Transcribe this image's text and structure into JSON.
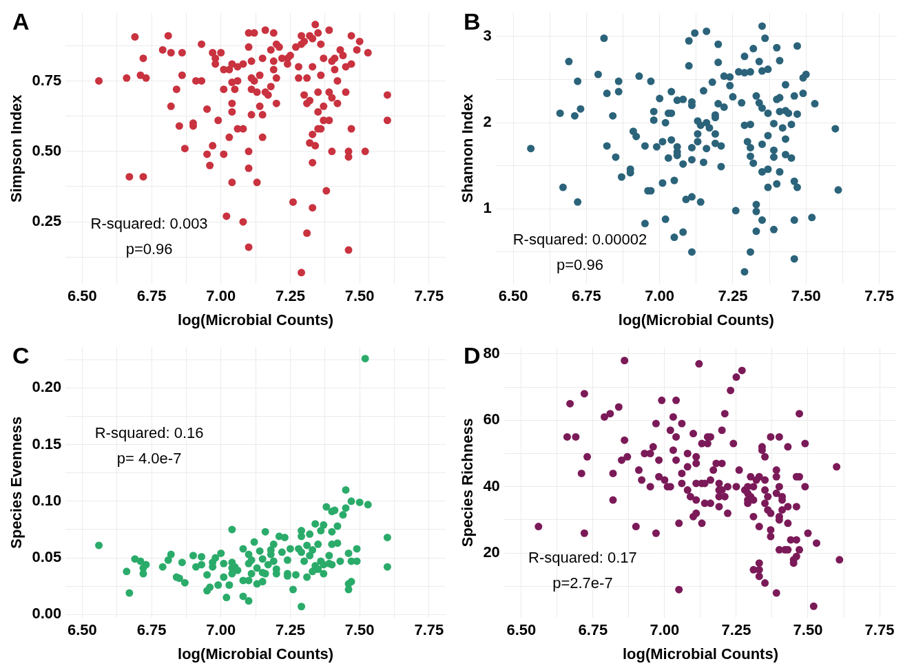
{
  "chart_data": [
    {
      "type": "scatter",
      "title": "A",
      "xlabel": "log(Microbial Counts)",
      "ylabel": "Simpson Index",
      "annotations": [
        "R-squared: 0.003",
        "p=0.96"
      ],
      "marker": "circle",
      "grid": true,
      "xlim": [
        6.44,
        7.81
      ],
      "xticks": [
        {
          "value": 6.5,
          "label": "6.50"
        },
        {
          "value": 6.625,
          "label": null
        },
        {
          "value": 6.75,
          "label": "6.75"
        },
        {
          "value": 6.875,
          "label": null
        },
        {
          "value": 7,
          "label": "7.00"
        },
        {
          "value": 7.125,
          "label": null
        },
        {
          "value": 7.25,
          "label": "7.25"
        },
        {
          "value": 7.375,
          "label": null
        },
        {
          "value": 7.5,
          "label": "7.50"
        },
        {
          "value": 7.625,
          "label": null
        },
        {
          "value": 7.75,
          "label": "7.75"
        }
      ],
      "ylim": [
        0.03,
        0.99
      ],
      "yticks": [
        {
          "value": 0.125,
          "label": null
        },
        {
          "value": 0.25,
          "label": "0.25"
        },
        {
          "value": 0.375,
          "label": null
        },
        {
          "value": 0.5,
          "label": "0.50"
        },
        {
          "value": 0.625,
          "label": null
        },
        {
          "value": 0.75,
          "label": "0.75"
        },
        {
          "value": 0.875,
          "label": null
        }
      ],
      "series": [
        {
          "color": "#c9323f",
          "x": [
            6.56,
            6.69,
            6.66,
            6.67,
            6.72,
            6.71,
            6.72,
            6.73,
            6.79,
            6.81,
            6.82,
            6.82,
            6.84,
            6.85,
            6.86,
            6.86,
            6.87,
            6.9,
            6.9,
            6.91,
            6.93,
            6.93,
            6.95,
            6.95,
            6.96,
            6.97,
            6.97,
            6.98,
            6.98,
            6.99,
            7.0,
            7.01,
            7.01,
            7.01,
            7.02,
            7.03,
            7.03,
            7.04,
            7.04,
            7.04,
            7.04,
            7.04,
            7.05,
            7.06,
            7.06,
            7.06,
            7.08,
            7.08,
            7.08,
            7.1,
            7.1,
            7.1,
            7.1,
            7.1,
            7.11,
            7.11,
            7.11,
            7.11,
            7.12,
            7.12,
            7.13,
            7.13,
            7.14,
            7.14,
            7.15,
            7.15,
            7.15,
            7.16,
            7.16,
            7.17,
            7.18,
            7.18,
            7.19,
            7.19,
            7.19,
            7.2,
            7.2,
            7.2,
            7.21,
            7.22,
            7.24,
            7.24,
            7.25,
            7.26,
            7.27,
            7.28,
            7.28,
            7.29,
            7.29,
            7.29,
            7.3,
            7.3,
            7.31,
            7.31,
            7.31,
            7.32,
            7.32,
            7.32,
            7.33,
            7.33,
            7.33,
            7.33,
            7.33,
            7.34,
            7.34,
            7.35,
            7.35,
            7.35,
            7.35,
            7.36,
            7.36,
            7.36,
            7.37,
            7.37,
            7.37,
            7.38,
            7.39,
            7.39,
            7.39,
            7.4,
            7.4,
            7.4,
            7.41,
            7.41,
            7.42,
            7.42,
            7.43,
            7.44,
            7.45,
            7.45,
            7.46,
            7.46,
            7.46,
            7.47,
            7.47,
            7.47,
            7.49,
            7.5,
            7.52,
            7.53,
            7.6,
            7.6
          ],
          "values": [
            0.75,
            0.906,
            0.76,
            0.41,
            0.41,
            0.77,
            0.83,
            0.76,
            0.86,
            0.91,
            0.85,
            0.66,
            0.72,
            0.59,
            0.77,
            0.85,
            0.51,
            0.6,
            0.59,
            0.75,
            0.75,
            0.88,
            0.65,
            0.49,
            0.45,
            0.85,
            0.52,
            0.81,
            0.83,
            0.61,
            0.85,
            0.49,
            0.72,
            0.79,
            0.27,
            0.79,
            0.55,
            0.67,
            0.745,
            0.81,
            0.64,
            0.39,
            0.72,
            0.75,
            0.58,
            0.8,
            0.25,
            0.58,
            0.81,
            0.44,
            0.87,
            0.92,
            0.5,
            0.16,
            0.82,
            0.72,
            0.63,
            0.76,
            0.92,
            0.75,
            0.71,
            0.39,
            0.77,
            0.66,
            0.83,
            0.55,
            0.63,
            0.93,
            0.71,
            0.7,
            0.86,
            0.73,
            0.79,
            0.82,
            0.92,
            0.88,
            0.76,
            0.67,
            0.87,
            0.83,
            0.83,
            0.81,
            0.84,
            0.32,
            0.87,
            0.8,
            0.76,
            0.07,
            0.91,
            0.88,
            0.7,
            0.89,
            0.76,
            0.21,
            0.67,
            0.91,
            0.68,
            0.53,
            0.3,
            0.56,
            0.46,
            0.9,
            0.8,
            0.95,
            0.52,
            0.92,
            0.71,
            0.64,
            0.58,
            0.77,
            0.88,
            0.58,
            0.61,
            0.83,
            0.66,
            0.36,
            0.61,
            0.71,
            0.93,
            0.5,
            0.82,
            0.69,
            0.83,
            0.79,
            0.75,
            0.67,
            0.86,
            0.84,
            0.8,
            0.71,
            0.5,
            0.48,
            0.15,
            0.91,
            0.58,
            0.81,
            0.86,
            0.89,
            0.5,
            0.85,
            0.7,
            0.61
          ]
        }
      ]
    },
    {
      "type": "scatter",
      "title": "B",
      "xlabel": "log(Microbial Counts)",
      "ylabel": "Shannon Index",
      "annotations": [
        "R-squared: 0.00002",
        "p=0.96"
      ],
      "marker": "circle",
      "grid": true,
      "xlim": [
        6.44,
        7.81
      ],
      "xticks": [
        {
          "value": 6.5,
          "label": "6.50"
        },
        {
          "value": 6.625,
          "label": null
        },
        {
          "value": 6.75,
          "label": "6.75"
        },
        {
          "value": 6.875,
          "label": null
        },
        {
          "value": 7,
          "label": "7.00"
        },
        {
          "value": 7.125,
          "label": null
        },
        {
          "value": 7.25,
          "label": "7.25"
        },
        {
          "value": 7.375,
          "label": null
        },
        {
          "value": 7.5,
          "label": "7.50"
        },
        {
          "value": 7.625,
          "label": null
        },
        {
          "value": 7.75,
          "label": "7.75"
        }
      ],
      "ylim": [
        0.13,
        3.27
      ],
      "yticks": [
        {
          "value": 0.5,
          "label": null
        },
        1,
        {
          "value": 1.5,
          "label": null
        },
        2,
        {
          "value": 2.5,
          "label": null
        },
        3
      ],
      "series": [
        {
          "color": "#2b637a",
          "x": [
            6.56,
            6.66,
            6.67,
            6.69,
            6.71,
            6.72,
            6.72,
            6.73,
            6.79,
            6.81,
            6.82,
            6.82,
            6.84,
            6.85,
            6.86,
            6.86,
            6.87,
            6.9,
            6.9,
            6.91,
            6.92,
            6.93,
            6.95,
            6.95,
            6.96,
            6.97,
            6.97,
            6.98,
            6.98,
            6.99,
            7.0,
            7.01,
            7.01,
            7.02,
            7.02,
            7.03,
            7.03,
            7.04,
            7.04,
            7.04,
            7.05,
            7.05,
            7.06,
            7.06,
            7.06,
            7.06,
            7.08,
            7.08,
            7.08,
            7.09,
            7.1,
            7.1,
            7.11,
            7.11,
            7.11,
            7.11,
            7.11,
            7.11,
            7.12,
            7.13,
            7.13,
            7.13,
            7.14,
            7.14,
            7.15,
            7.15,
            7.16,
            7.16,
            7.16,
            7.17,
            7.18,
            7.19,
            7.19,
            7.19,
            7.19,
            7.2,
            7.2,
            7.2,
            7.21,
            7.21,
            7.22,
            7.22,
            7.24,
            7.24,
            7.25,
            7.26,
            7.27,
            7.28,
            7.29,
            7.29,
            7.29,
            7.29,
            7.3,
            7.31,
            7.31,
            7.31,
            7.31,
            7.31,
            7.32,
            7.32,
            7.33,
            7.33,
            7.33,
            7.33,
            7.34,
            7.34,
            7.35,
            7.35,
            7.35,
            7.35,
            7.35,
            7.35,
            7.36,
            7.37,
            7.37,
            7.37,
            7.37,
            7.37,
            7.39,
            7.39,
            7.39,
            7.39,
            7.4,
            7.4,
            7.4,
            7.41,
            7.41,
            7.41,
            7.41,
            7.42,
            7.43,
            7.43,
            7.43,
            7.43,
            7.44,
            7.45,
            7.45,
            7.46,
            7.46,
            7.46,
            7.46,
            7.47,
            7.47,
            7.47,
            7.49,
            7.49,
            7.5,
            7.52,
            7.53,
            7.6,
            7.61
          ],
          "values": [
            1.7,
            2.11,
            1.25,
            2.71,
            2.08,
            1.08,
            2.48,
            2.16,
            2.56,
            2.98,
            1.73,
            2.34,
            2.08,
            1.6,
            2.36,
            2.48,
            1.37,
            1.46,
            1.42,
            1.9,
            1.84,
            2.54,
            1.73,
            0.83,
            1.21,
            2.48,
            1.21,
            2.03,
            2.13,
            1.72,
            2.28,
            1.3,
            1.78,
            2.0,
            0.88,
            1.59,
            2.11,
            1.8,
            2.11,
            2.36,
            1.33,
            0.67,
            1.66,
            1.72,
            1.62,
            2.26,
            1.52,
            0.73,
            2.27,
            1.11,
            2.95,
            2.66,
            1.14,
            0.5,
            2.2,
            1.71,
            2.24,
            1.57,
            3.04,
            1.87,
            1.78,
            2.02,
            1.08,
            1.97,
            2.37,
            1.54,
            1.7,
            3.06,
            2.0,
            1.94,
            2.47,
            1.76,
            1.87,
            2.06,
            2.09,
            2.91,
            2.7,
            2.22,
            1.49,
            1.73,
            2.54,
            2.18,
            2.53,
            2.43,
            2.3,
            0.98,
            2.59,
            2.23,
            1.97,
            0.27,
            2.77,
            2.58,
            1.78,
            1.71,
            2.59,
            1.98,
            0.5,
            1.61,
            1.53,
            2.86,
            1.05,
            0.74,
            2.31,
            0.97,
            2.71,
            2.23,
            0.87,
            3.12,
            2.6,
            2.17,
            1.43,
            1.75,
            2.98,
            1.85,
            1.46,
            2.62,
            1.25,
            2.11,
            0.76,
            1.6,
            1.68,
            1.99,
            2.87,
            2.27,
            1.29,
            2.72,
            2.13,
            1.43,
            2.29,
            1.94,
            2.14,
            1.81,
            1.63,
            2.44,
            2.11,
            1.98,
            1.59,
            2.31,
            1.32,
            0.87,
            0.42,
            2.89,
            1.25,
            2.1,
            2.34,
            2.52,
            2.56,
            0.9,
            2.22,
            1.93,
            1.22
          ]
        }
      ]
    },
    {
      "type": "scatter",
      "title": "C",
      "xlabel": "log(Microbial Counts)",
      "ylabel": "Species Evenness",
      "annotations": [
        "R-squared: 0.16",
        "p= 4.0e-7"
      ],
      "marker": "circle",
      "grid": true,
      "xlim": [
        6.44,
        7.81
      ],
      "xticks": [
        {
          "value": 6.5,
          "label": "6.50"
        },
        {
          "value": 6.625,
          "label": null
        },
        {
          "value": 6.75,
          "label": "6.75"
        },
        {
          "value": 6.875,
          "label": null
        },
        {
          "value": 7,
          "label": "7.00"
        },
        {
          "value": 7.125,
          "label": null
        },
        {
          "value": 7.25,
          "label": "7.25"
        },
        {
          "value": 7.375,
          "label": null
        },
        {
          "value": 7.5,
          "label": "7.50"
        },
        {
          "value": 7.625,
          "label": null
        },
        {
          "value": 7.75,
          "label": "7.75"
        }
      ],
      "ylim": [
        -0.003,
        0.236
      ],
      "yticks": [
        {
          "value": 0,
          "label": "0.00"
        },
        {
          "value": 0.025,
          "label": null
        },
        {
          "value": 0.05,
          "label": "0.05"
        },
        {
          "value": 0.075,
          "label": null
        },
        {
          "value": 0.1,
          "label": "0.10"
        },
        {
          "value": 0.125,
          "label": null
        },
        {
          "value": 0.15,
          "label": "0.15"
        },
        {
          "value": 0.175,
          "label": null
        },
        {
          "value": 0.2,
          "label": "0.20"
        },
        {
          "value": 0.225,
          "label": null
        }
      ],
      "series": [
        {
          "color": "#2bab6a",
          "x": [
            6.56,
            6.66,
            6.67,
            6.69,
            6.71,
            6.72,
            6.72,
            6.73,
            6.79,
            6.81,
            6.82,
            6.84,
            6.85,
            6.86,
            6.87,
            6.9,
            6.91,
            6.93,
            6.93,
            6.95,
            6.95,
            6.96,
            6.97,
            6.97,
            6.98,
            6.99,
            7.0,
            7.01,
            7.01,
            7.02,
            7.03,
            7.04,
            7.04,
            7.04,
            7.04,
            7.05,
            7.06,
            7.08,
            7.08,
            7.08,
            7.1,
            7.1,
            7.1,
            7.1,
            7.11,
            7.11,
            7.12,
            7.13,
            7.13,
            7.14,
            7.15,
            7.15,
            7.15,
            7.16,
            7.16,
            7.17,
            7.18,
            7.18,
            7.19,
            7.19,
            7.2,
            7.2,
            7.21,
            7.22,
            7.23,
            7.24,
            7.24,
            7.25,
            7.24,
            7.26,
            7.27,
            7.28,
            7.29,
            7.29,
            7.29,
            7.29,
            7.3,
            7.31,
            7.31,
            7.32,
            7.32,
            7.33,
            7.33,
            7.34,
            7.34,
            7.35,
            7.35,
            7.36,
            7.36,
            7.37,
            7.37,
            7.37,
            7.38,
            7.39,
            7.39,
            7.4,
            7.4,
            7.4,
            7.4,
            7.41,
            7.42,
            7.42,
            7.43,
            7.44,
            7.45,
            7.45,
            7.46,
            7.46,
            7.46,
            7.47,
            7.47,
            7.47,
            7.49,
            7.49,
            7.5,
            7.52,
            7.53,
            7.6,
            7.6
          ],
          "values": [
            0.061,
            0.038,
            0.019,
            0.049,
            0.047,
            0.041,
            0.036,
            0.044,
            0.042,
            0.048,
            0.053,
            0.033,
            0.032,
            0.046,
            0.028,
            0.052,
            0.042,
            0.044,
            0.051,
            0.035,
            0.021,
            0.024,
            0.042,
            0.046,
            0.05,
            0.026,
            0.054,
            0.033,
            0.045,
            0.015,
            0.026,
            0.041,
            0.036,
            0.075,
            0.046,
            0.042,
            0.039,
            0.016,
            0.03,
            0.058,
            0.03,
            0.053,
            0.045,
            0.012,
            0.036,
            0.048,
            0.064,
            0.041,
            0.027,
            0.056,
            0.037,
            0.029,
            0.049,
            0.073,
            0.036,
            0.044,
            0.053,
            0.057,
            0.047,
            0.062,
            0.04,
            0.036,
            0.069,
            0.055,
            0.068,
            0.036,
            0.048,
            0.058,
            0.034,
            0.022,
            0.035,
            0.058,
            0.007,
            0.074,
            0.069,
            0.055,
            0.047,
            0.061,
            0.033,
            0.071,
            0.052,
            0.038,
            0.057,
            0.043,
            0.08,
            0.062,
            0.04,
            0.074,
            0.047,
            0.044,
            0.079,
            0.036,
            0.095,
            0.045,
            0.052,
            0.091,
            0.073,
            0.062,
            0.044,
            0.092,
            0.078,
            0.063,
            0.047,
            0.088,
            0.11,
            0.094,
            0.054,
            0.027,
            0.022,
            0.047,
            0.029,
            0.1,
            0.058,
            0.047,
            0.099,
            0.226,
            0.097,
            0.042,
            0.068
          ]
        }
      ]
    },
    {
      "type": "scatter",
      "title": "D",
      "xlabel": "log(Microbial Counts)",
      "ylabel": "Species Richness",
      "annotations": [
        "R-squared: 0.17",
        "p=2.7e-7"
      ],
      "marker": "circle",
      "grid": true,
      "xlim": [
        6.44,
        7.81
      ],
      "xticks": [
        {
          "value": 6.5,
          "label": "6.50"
        },
        {
          "value": 6.625,
          "label": null
        },
        {
          "value": 6.75,
          "label": "6.75"
        },
        {
          "value": 6.875,
          "label": null
        },
        {
          "value": 7,
          "label": "7.00"
        },
        {
          "value": 7.125,
          "label": null
        },
        {
          "value": 7.25,
          "label": "7.25"
        },
        {
          "value": 7.375,
          "label": null
        },
        {
          "value": 7.5,
          "label": "7.50"
        },
        {
          "value": 7.625,
          "label": null
        },
        {
          "value": 7.75,
          "label": "7.75"
        }
      ],
      "ylim": [
        0.5,
        82
      ],
      "yticks": [
        {
          "value": 10,
          "label": null
        },
        20,
        {
          "value": 30,
          "label": null
        },
        40,
        {
          "value": 50,
          "label": null
        },
        60,
        {
          "value": 70,
          "label": null
        },
        80
      ],
      "series": [
        {
          "color": "#7b1a58",
          "x": [
            6.56,
            6.66,
            6.67,
            6.69,
            6.71,
            6.72,
            6.72,
            6.73,
            6.79,
            6.81,
            6.82,
            6.82,
            6.84,
            6.85,
            6.86,
            6.86,
            6.87,
            6.9,
            6.91,
            6.92,
            6.93,
            6.95,
            6.95,
            6.96,
            6.97,
            6.97,
            6.98,
            6.98,
            6.99,
            7.0,
            7.01,
            7.02,
            7.02,
            7.03,
            7.03,
            7.04,
            7.04,
            7.04,
            7.05,
            7.05,
            7.06,
            7.06,
            7.06,
            7.08,
            7.08,
            7.08,
            7.09,
            7.1,
            7.1,
            7.11,
            7.11,
            7.11,
            7.11,
            7.11,
            7.12,
            7.13,
            7.13,
            7.13,
            7.14,
            7.14,
            7.15,
            7.15,
            7.16,
            7.16,
            7.16,
            7.17,
            7.18,
            7.19,
            7.19,
            7.19,
            7.19,
            7.2,
            7.2,
            7.2,
            7.21,
            7.21,
            7.22,
            7.22,
            7.23,
            7.24,
            7.25,
            7.25,
            7.26,
            7.27,
            7.28,
            7.29,
            7.29,
            7.29,
            7.29,
            7.3,
            7.3,
            7.31,
            7.31,
            7.31,
            7.31,
            7.32,
            7.33,
            7.33,
            7.33,
            7.33,
            7.33,
            7.34,
            7.34,
            7.35,
            7.35,
            7.35,
            7.35,
            7.35,
            7.36,
            7.36,
            7.37,
            7.37,
            7.37,
            7.37,
            7.39,
            7.39,
            7.39,
            7.39,
            7.4,
            7.4,
            7.4,
            7.4,
            7.4,
            7.41,
            7.41,
            7.41,
            7.42,
            7.43,
            7.43,
            7.43,
            7.43,
            7.44,
            7.45,
            7.45,
            7.46,
            7.46,
            7.46,
            7.46,
            7.47,
            7.47,
            7.47,
            7.49,
            7.49,
            7.5,
            7.52,
            7.53,
            7.6,
            7.61
          ],
          "values": [
            28,
            55,
            65,
            55,
            44,
            26,
            68,
            49,
            61,
            62,
            44,
            36,
            64,
            48,
            78,
            54,
            49,
            28,
            45,
            42,
            50,
            50,
            40,
            52,
            59,
            26,
            48,
            43,
            66,
            42,
            40,
            40,
            57,
            61,
            51,
            55,
            48,
            66,
            29,
            9,
            41,
            44,
            59,
            50,
            46,
            39,
            37,
            56,
            31,
            41,
            49,
            36,
            32,
            47,
            77,
            29,
            53,
            41,
            35,
            41,
            55,
            53,
            35,
            42,
            55,
            45,
            47,
            34,
            41,
            39,
            37,
            47,
            57,
            39,
            62,
            37,
            32,
            40,
            69,
            53,
            73,
            40,
            45,
            75,
            39,
            36,
            35,
            40,
            38,
            37,
            43,
            36,
            40,
            31,
            15,
            42,
            15,
            13,
            43,
            28,
            17,
            52,
            51,
            11,
            42,
            49,
            39,
            35,
            37,
            33,
            55,
            25,
            32,
            27,
            45,
            8,
            38,
            43,
            55,
            40,
            31,
            30,
            21,
            36,
            33,
            37,
            21,
            34,
            29,
            21,
            52,
            24,
            18,
            17,
            34,
            24,
            43,
            19,
            62,
            21,
            43,
            40,
            53,
            26,
            4,
            23,
            46,
            18
          ]
        }
      ]
    }
  ]
}
